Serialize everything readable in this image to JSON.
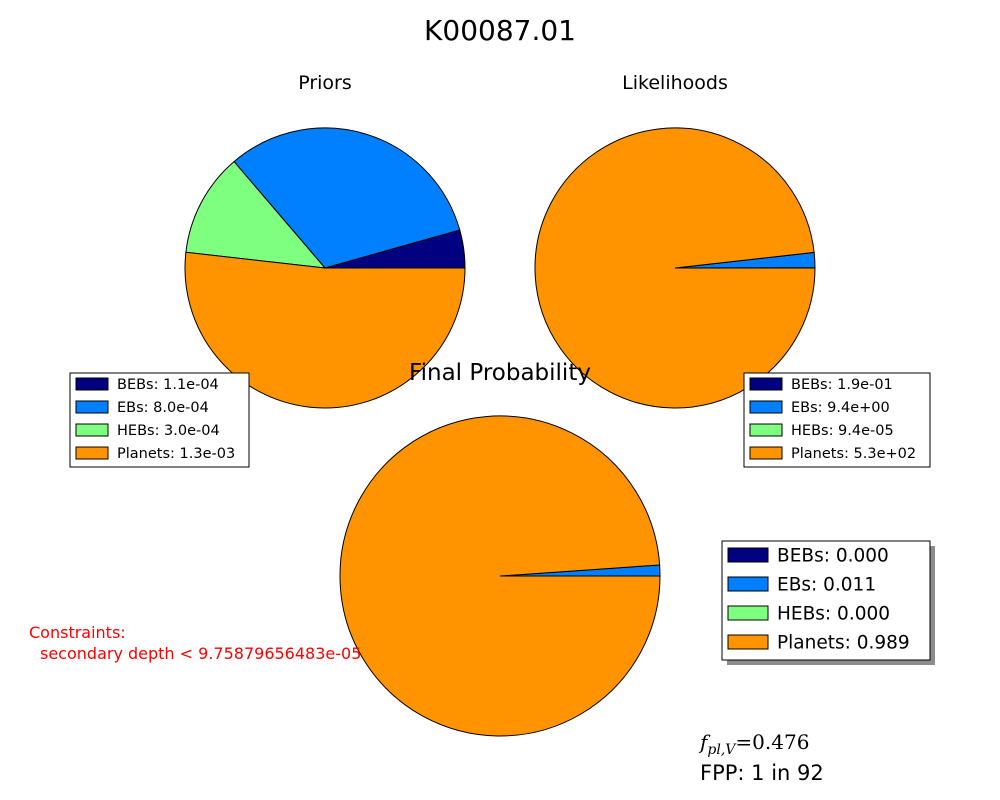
{
  "title": "K00087.01",
  "colors": {
    "BEBs": "#000080",
    "EBs": "#0080ff",
    "HEBs": "#7fff7f",
    "Planets": "#ff9400"
  },
  "chart_data": [
    {
      "type": "pie",
      "title": "Priors",
      "labels": [
        "BEBs",
        "EBs",
        "HEBs",
        "Planets"
      ],
      "values": [
        0.00011,
        0.0008,
        0.0003,
        0.0013
      ],
      "legend": [
        "BEBs: 1.1e-04",
        "EBs: 8.0e-04",
        "HEBs: 3.0e-04",
        "Planets: 1.3e-03"
      ],
      "legend_position": "bottom-left"
    },
    {
      "type": "pie",
      "title": "Likelihoods",
      "labels": [
        "BEBs",
        "EBs",
        "HEBs",
        "Planets"
      ],
      "values": [
        0.19,
        9.4,
        9.4e-05,
        530
      ],
      "legend": [
        "BEBs: 1.9e-01",
        "EBs: 9.4e+00",
        "HEBs: 9.4e-05",
        "Planets: 5.3e+02"
      ],
      "legend_position": "bottom-right"
    },
    {
      "type": "pie",
      "title": "Final Probability",
      "labels": [
        "BEBs",
        "EBs",
        "HEBs",
        "Planets"
      ],
      "values": [
        0.0,
        0.011,
        0.0,
        0.989
      ],
      "legend": [
        "BEBs: 0.000",
        "EBs: 0.011",
        "HEBs: 0.000",
        "Planets: 0.989"
      ],
      "legend_position": "right"
    }
  ],
  "constraints": {
    "heading": "Constraints:",
    "items": [
      "secondary depth < 9.75879656483e-05"
    ]
  },
  "fplv": {
    "symbol": "f",
    "subscript": "pl,V",
    "equals": "=",
    "value": "0.476"
  },
  "fpp": "FPP: 1 in 92"
}
